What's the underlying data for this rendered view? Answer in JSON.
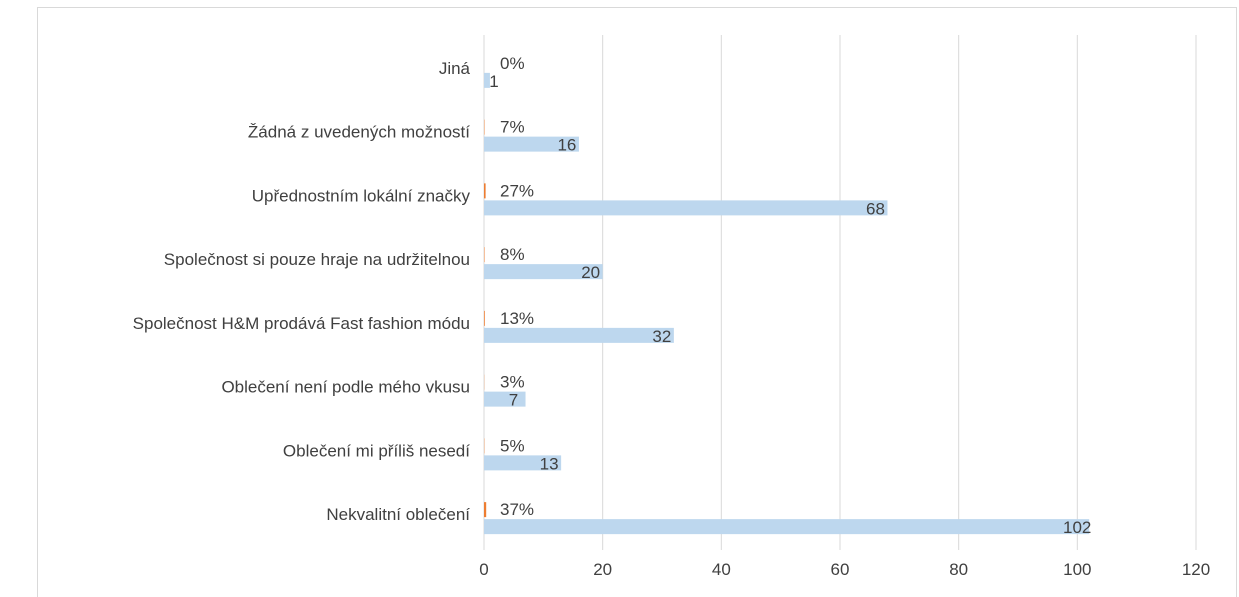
{
  "chart_data": {
    "type": "bar",
    "orientation": "horizontal",
    "categories": [
      "Jiná",
      "Žádná z uvedených možností",
      "Upřednostním lokální značky ",
      "Společnost si pouze hraje na udržitelnou",
      "Společnost H&M prodává Fast fashion módu",
      "Oblečení není podle mého vkusu",
      "Oblečení mi příliš nesedí",
      "Nekvalitní oblečení"
    ],
    "series": [
      {
        "values": [
          0,
          0.07,
          0.27,
          0.08,
          0.13,
          0.03,
          0.05,
          0.37
        ],
        "labels": [
          "0%",
          "7%",
          "27%",
          "8%",
          "13%",
          "3%",
          "5%",
          "37%"
        ],
        "color": "#ed7d31"
      },
      {
        "values": [
          1,
          16,
          68,
          20,
          32,
          7,
          13,
          102
        ],
        "labels": [
          "1",
          "16",
          "68",
          "20",
          "32",
          "7",
          "13",
          "102"
        ],
        "color": "#bdd7ee"
      }
    ],
    "xlim": [
      0,
      120
    ],
    "xticks": [
      "0",
      "20",
      "40",
      "60",
      "80",
      "100",
      "120"
    ],
    "grid": "vertical",
    "legend": "none"
  }
}
